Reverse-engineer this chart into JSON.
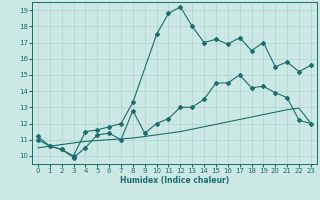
{
  "xlabel": "Humidex (Indice chaleur)",
  "bg_color": "#cce8e4",
  "grid_color": "#b0d4d0",
  "line_color": "#1a6e6e",
  "xlim": [
    -0.5,
    23.5
  ],
  "ylim": [
    9.5,
    19.5
  ],
  "yticks": [
    10,
    11,
    12,
    13,
    14,
    15,
    16,
    17,
    18,
    19
  ],
  "xticks": [
    0,
    1,
    2,
    3,
    4,
    5,
    6,
    7,
    8,
    9,
    10,
    11,
    12,
    13,
    14,
    15,
    16,
    17,
    18,
    19,
    20,
    21,
    22,
    23
  ],
  "curve1_x": [
    0,
    1,
    2,
    3,
    4,
    5,
    6,
    7,
    8,
    10,
    11,
    12,
    13,
    14,
    15,
    16,
    17,
    18,
    19,
    20,
    21,
    22,
    23
  ],
  "curve1_y": [
    11.2,
    10.6,
    10.4,
    10.0,
    11.5,
    11.6,
    11.8,
    12.0,
    13.3,
    17.5,
    18.8,
    19.2,
    18.0,
    17.0,
    17.2,
    16.9,
    17.3,
    16.5,
    17.0,
    15.5,
    15.8,
    15.2,
    15.6
  ],
  "curve2_x": [
    0,
    1,
    2,
    3,
    4,
    5,
    6,
    7,
    8,
    9,
    10,
    11,
    12,
    13,
    14,
    15,
    16,
    17,
    18,
    19,
    20,
    21,
    22,
    23
  ],
  "curve2_y": [
    11.0,
    10.6,
    10.4,
    9.9,
    10.5,
    11.3,
    11.4,
    11.0,
    12.8,
    11.4,
    12.0,
    12.3,
    13.0,
    13.0,
    13.5,
    14.5,
    14.5,
    15.0,
    14.2,
    14.3,
    13.9,
    13.6,
    12.2,
    12.0
  ],
  "curve3_x": [
    0,
    1,
    2,
    3,
    4,
    5,
    6,
    7,
    8,
    9,
    10,
    11,
    12,
    13,
    14,
    15,
    16,
    17,
    18,
    19,
    20,
    21,
    22,
    23
  ],
  "curve3_y": [
    10.5,
    10.6,
    10.7,
    10.8,
    10.9,
    10.95,
    11.0,
    11.05,
    11.1,
    11.2,
    11.3,
    11.4,
    11.5,
    11.65,
    11.8,
    11.95,
    12.1,
    12.25,
    12.4,
    12.55,
    12.7,
    12.85,
    12.95,
    12.0
  ]
}
